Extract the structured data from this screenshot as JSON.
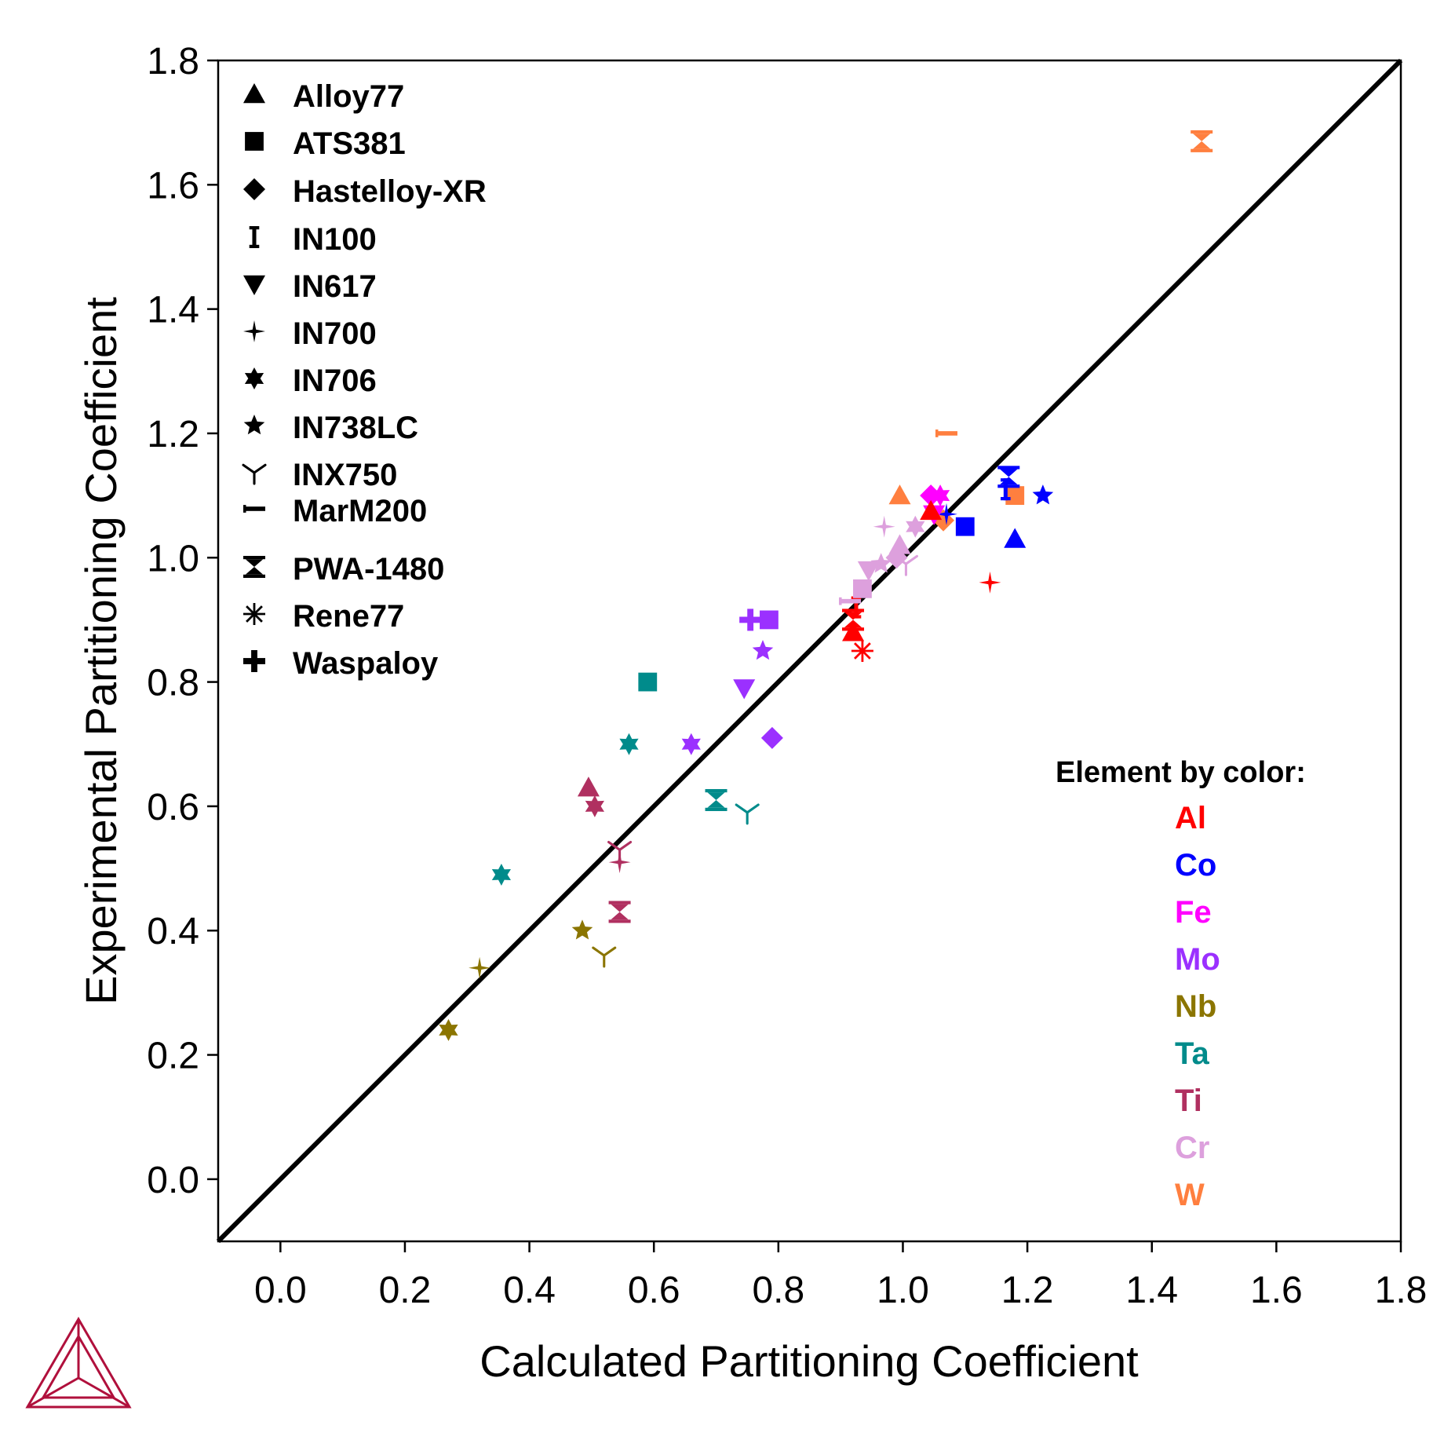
{
  "chart_data": {
    "type": "scatter",
    "xlabel": "Calculated Partitioning Coefficient",
    "ylabel": "Experimental Partitioning Coefficient",
    "xlim": [
      -0.1,
      1.8
    ],
    "ylim": [
      -0.1,
      1.8
    ],
    "x_ticks": [
      "0.0",
      "0.2",
      "0.4",
      "0.6",
      "0.8",
      "1.0",
      "1.2",
      "1.4",
      "1.6",
      "1.8"
    ],
    "y_ticks": [
      "0.0",
      "0.2",
      "0.4",
      "0.6",
      "0.8",
      "1.0",
      "1.2",
      "1.4",
      "1.6",
      "1.8"
    ],
    "reference_line": {
      "from": [
        -0.1,
        -0.1
      ],
      "to": [
        1.8,
        1.8
      ],
      "color": "#000000"
    },
    "grid": false,
    "legend_placement": "top-left",
    "alloy_legend": [
      {
        "name": "Alloy77",
        "marker": "triangle-up"
      },
      {
        "name": "ATS381",
        "marker": "square"
      },
      {
        "name": "Hastelloy-XR",
        "marker": "diamond"
      },
      {
        "name": "IN100",
        "marker": "i-beam"
      },
      {
        "name": "IN617",
        "marker": "triangle-down"
      },
      {
        "name": "IN700",
        "marker": "star4"
      },
      {
        "name": "IN706",
        "marker": "star6"
      },
      {
        "name": "IN738LC",
        "marker": "star5"
      },
      {
        "name": "INX750",
        "marker": "tri-down"
      },
      {
        "name": "MarM200",
        "marker": "dash"
      },
      {
        "name": "PWA-1480",
        "marker": "hourglass"
      },
      {
        "name": "Rene77",
        "marker": "asterisk"
      },
      {
        "name": "Waspaloy",
        "marker": "plus"
      }
    ],
    "element_legend_title": "Element by color:",
    "element_placement": "bottom-right",
    "elements": [
      {
        "name": "Al",
        "color": "#ff0000"
      },
      {
        "name": "Co",
        "color": "#0000ff"
      },
      {
        "name": "Fe",
        "color": "#ff00ff"
      },
      {
        "name": "Mo",
        "color": "#9b30ff"
      },
      {
        "name": "Nb",
        "color": "#8b7500"
      },
      {
        "name": "Ta",
        "color": "#008b8b"
      },
      {
        "name": "Ti",
        "color": "#b03060"
      },
      {
        "name": "Cr",
        "color": "#dda0dd"
      },
      {
        "name": "W",
        "color": "#ff7f3f"
      }
    ],
    "points": [
      {
        "x": 1.48,
        "y": 1.67,
        "element": "W",
        "alloy": "PWA-1480"
      },
      {
        "x": 1.07,
        "y": 1.2,
        "element": "W",
        "alloy": "MarM200"
      },
      {
        "x": 0.995,
        "y": 1.1,
        "element": "W",
        "alloy": "Alloy77"
      },
      {
        "x": 1.18,
        "y": 1.1,
        "element": "W",
        "alloy": "ATS381"
      },
      {
        "x": 1.065,
        "y": 1.06,
        "element": "W",
        "alloy": "Hastelloy-XR"
      },
      {
        "x": 1.17,
        "y": 1.13,
        "element": "Co",
        "alloy": "PWA-1480"
      },
      {
        "x": 1.165,
        "y": 1.11,
        "element": "Co",
        "alloy": "IN100"
      },
      {
        "x": 1.225,
        "y": 1.1,
        "element": "Co",
        "alloy": "IN738LC"
      },
      {
        "x": 1.18,
        "y": 1.03,
        "element": "Co",
        "alloy": "Alloy77"
      },
      {
        "x": 1.1,
        "y": 1.05,
        "element": "Co",
        "alloy": "ATS381"
      },
      {
        "x": 1.07,
        "y": 1.07,
        "element": "Co",
        "alloy": "IN700"
      },
      {
        "x": 1.045,
        "y": 1.1,
        "element": "Fe",
        "alloy": "Hastelloy-XR"
      },
      {
        "x": 1.06,
        "y": 1.1,
        "element": "Fe",
        "alloy": "IN706"
      },
      {
        "x": 1.05,
        "y": 1.07,
        "element": "Fe",
        "alloy": "IN617"
      },
      {
        "x": 1.045,
        "y": 1.075,
        "element": "Al",
        "alloy": "Alloy77"
      },
      {
        "x": 1.14,
        "y": 0.96,
        "element": "Al",
        "alloy": "IN700"
      },
      {
        "x": 0.925,
        "y": 0.92,
        "element": "Al",
        "alloy": "IN100"
      },
      {
        "x": 0.92,
        "y": 0.9,
        "element": "Al",
        "alloy": "PWA-1480"
      },
      {
        "x": 0.92,
        "y": 0.88,
        "element": "Al",
        "alloy": "Alloy77"
      },
      {
        "x": 0.935,
        "y": 0.85,
        "element": "Al",
        "alloy": "Rene77"
      },
      {
        "x": 0.97,
        "y": 1.05,
        "element": "Cr",
        "alloy": "IN700"
      },
      {
        "x": 1.02,
        "y": 1.05,
        "element": "Cr",
        "alloy": "IN706"
      },
      {
        "x": 0.995,
        "y": 1.02,
        "element": "Cr",
        "alloy": "Alloy77"
      },
      {
        "x": 0.99,
        "y": 1.0,
        "element": "Cr",
        "alloy": "Hastelloy-XR"
      },
      {
        "x": 1.005,
        "y": 0.99,
        "element": "Cr",
        "alloy": "INX750"
      },
      {
        "x": 0.965,
        "y": 0.99,
        "element": "Cr",
        "alloy": "IN738LC"
      },
      {
        "x": 0.945,
        "y": 0.98,
        "element": "Cr",
        "alloy": "IN617"
      },
      {
        "x": 0.935,
        "y": 0.95,
        "element": "Cr",
        "alloy": "ATS381"
      },
      {
        "x": 0.915,
        "y": 0.93,
        "element": "Cr",
        "alloy": "MarM200"
      },
      {
        "x": 0.785,
        "y": 0.9,
        "element": "Mo",
        "alloy": "ATS381"
      },
      {
        "x": 0.755,
        "y": 0.9,
        "element": "Mo",
        "alloy": "Waspaloy"
      },
      {
        "x": 0.775,
        "y": 0.85,
        "element": "Mo",
        "alloy": "IN738LC"
      },
      {
        "x": 0.745,
        "y": 0.79,
        "element": "Mo",
        "alloy": "IN617"
      },
      {
        "x": 0.66,
        "y": 0.7,
        "element": "Mo",
        "alloy": "IN706"
      },
      {
        "x": 0.79,
        "y": 0.71,
        "element": "Mo",
        "alloy": "Hastelloy-XR"
      },
      {
        "x": 0.59,
        "y": 0.8,
        "element": "Ta",
        "alloy": "ATS381"
      },
      {
        "x": 0.56,
        "y": 0.7,
        "element": "Ta",
        "alloy": "IN706"
      },
      {
        "x": 0.7,
        "y": 0.61,
        "element": "Ta",
        "alloy": "PWA-1480"
      },
      {
        "x": 0.75,
        "y": 0.59,
        "element": "Ta",
        "alloy": "INX750"
      },
      {
        "x": 0.355,
        "y": 0.49,
        "element": "Ta",
        "alloy": "IN706"
      },
      {
        "x": 0.495,
        "y": 0.63,
        "element": "Ti",
        "alloy": "Alloy77"
      },
      {
        "x": 0.505,
        "y": 0.6,
        "element": "Ti",
        "alloy": "IN706"
      },
      {
        "x": 0.545,
        "y": 0.53,
        "element": "Ti",
        "alloy": "INX750"
      },
      {
        "x": 0.545,
        "y": 0.51,
        "element": "Ti",
        "alloy": "IN700"
      },
      {
        "x": 0.545,
        "y": 0.43,
        "element": "Ti",
        "alloy": "PWA-1480"
      },
      {
        "x": 0.485,
        "y": 0.4,
        "element": "Nb",
        "alloy": "IN738LC"
      },
      {
        "x": 0.52,
        "y": 0.36,
        "element": "Nb",
        "alloy": "INX750"
      },
      {
        "x": 0.32,
        "y": 0.34,
        "element": "Nb",
        "alloy": "IN700"
      },
      {
        "x": 0.27,
        "y": 0.24,
        "element": "Nb",
        "alloy": "IN706"
      }
    ]
  }
}
